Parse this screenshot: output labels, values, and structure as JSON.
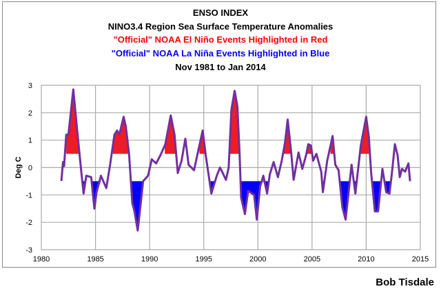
{
  "chart_data": {
    "type": "line",
    "title": [
      "ENSO INDEX",
      "NINO3.4 Region Sea Surface Temperature Anomalies",
      "\"Official\" NOAA El Niño Events Highlighted in Red",
      "\"Official\" NOAA La Niña Events Highlighted in Blue",
      "Nov 1981 to Jan 2014"
    ],
    "title_colors": [
      "#000000",
      "#000000",
      "#ff0000",
      "#0000ff",
      "#000000"
    ],
    "ylabel": "Deg C",
    "xlabel": "",
    "xlim": [
      1980,
      2015
    ],
    "ylim": [
      -3,
      3
    ],
    "xticks": [
      1980,
      1985,
      1990,
      1995,
      2000,
      2005,
      2010,
      2015
    ],
    "yticks": [
      -3,
      -2,
      -1,
      0,
      1,
      2,
      3
    ],
    "grid": true,
    "line_color": "#7030a0",
    "el_nino_color": "#ee1c24",
    "la_nina_color": "#0000ff",
    "threshold": 0.5,
    "points": [
      [
        1981.85,
        -0.49
      ],
      [
        1982.0,
        0.2
      ],
      [
        1982.1,
        0.05
      ],
      [
        1982.3,
        1.2
      ],
      [
        1982.5,
        1.2
      ],
      [
        1982.95,
        2.85
      ],
      [
        1983.3,
        1.4
      ],
      [
        1983.5,
        0.6
      ],
      [
        1983.7,
        -0.2
      ],
      [
        1983.9,
        -0.95
      ],
      [
        1984.15,
        -0.3
      ],
      [
        1984.6,
        -0.35
      ],
      [
        1984.9,
        -1.5
      ],
      [
        1985.1,
        -0.9
      ],
      [
        1985.5,
        -0.3
      ],
      [
        1986.0,
        -0.75
      ],
      [
        1986.35,
        0.1
      ],
      [
        1986.75,
        1.2
      ],
      [
        1987.0,
        1.35
      ],
      [
        1987.2,
        1.2
      ],
      [
        1987.6,
        1.85
      ],
      [
        1987.8,
        1.5
      ],
      [
        1988.1,
        0.5
      ],
      [
        1988.4,
        -1.3
      ],
      [
        1988.6,
        -1.6
      ],
      [
        1988.9,
        -2.3
      ],
      [
        1989.1,
        -1.6
      ],
      [
        1989.4,
        -0.5
      ],
      [
        1989.85,
        -0.3
      ],
      [
        1990.2,
        0.3
      ],
      [
        1990.6,
        0.15
      ],
      [
        1991.0,
        0.45
      ],
      [
        1991.45,
        0.85
      ],
      [
        1991.95,
        1.9
      ],
      [
        1992.3,
        1.2
      ],
      [
        1992.6,
        -0.2
      ],
      [
        1992.95,
        0.25
      ],
      [
        1993.3,
        1.05
      ],
      [
        1993.6,
        0.1
      ],
      [
        1994.1,
        -0.1
      ],
      [
        1994.4,
        0.45
      ],
      [
        1994.9,
        1.35
      ],
      [
        1995.2,
        0.4
      ],
      [
        1995.7,
        -0.95
      ],
      [
        1996.2,
        -0.3
      ],
      [
        1996.5,
        0.0
      ],
      [
        1996.75,
        -0.2
      ],
      [
        1997.05,
        -0.45
      ],
      [
        1997.3,
        0.0
      ],
      [
        1997.55,
        2.1
      ],
      [
        1997.85,
        2.8
      ],
      [
        1998.1,
        2.25
      ],
      [
        1998.3,
        0.6
      ],
      [
        1998.45,
        -1.1
      ],
      [
        1998.8,
        -1.7
      ],
      [
        1999.1,
        -0.85
      ],
      [
        1999.65,
        -1.0
      ],
      [
        1999.9,
        -1.9
      ],
      [
        2000.2,
        -0.7
      ],
      [
        2000.5,
        -0.3
      ],
      [
        2000.85,
        -0.95
      ],
      [
        2001.1,
        -0.25
      ],
      [
        2001.45,
        0.2
      ],
      [
        2001.85,
        -0.35
      ],
      [
        2002.2,
        0.25
      ],
      [
        2002.5,
        0.9
      ],
      [
        2002.75,
        1.75
      ],
      [
        2003.05,
        0.65
      ],
      [
        2003.3,
        -0.45
      ],
      [
        2003.75,
        0.55
      ],
      [
        2004.1,
        -0.05
      ],
      [
        2004.45,
        0.45
      ],
      [
        2004.65,
        0.85
      ],
      [
        2004.9,
        0.8
      ],
      [
        2005.1,
        0.25
      ],
      [
        2005.4,
        0.5
      ],
      [
        2005.85,
        -0.15
      ],
      [
        2006.0,
        -0.9
      ],
      [
        2006.4,
        0.25
      ],
      [
        2006.9,
        1.15
      ],
      [
        2007.15,
        0.1
      ],
      [
        2007.45,
        -0.1
      ],
      [
        2007.8,
        -1.45
      ],
      [
        2008.1,
        -1.9
      ],
      [
        2008.35,
        -1.0
      ],
      [
        2008.65,
        0.1
      ],
      [
        2009.0,
        -0.95
      ],
      [
        2009.5,
        0.8
      ],
      [
        2010.0,
        1.85
      ],
      [
        2010.25,
        1.1
      ],
      [
        2010.45,
        -0.15
      ],
      [
        2010.8,
        -1.6
      ],
      [
        2011.1,
        -1.6
      ],
      [
        2011.5,
        -0.05
      ],
      [
        2011.85,
        -0.9
      ],
      [
        2012.15,
        -0.95
      ],
      [
        2012.35,
        -0.3
      ],
      [
        2012.65,
        0.85
      ],
      [
        2012.9,
        0.45
      ],
      [
        2013.1,
        -0.35
      ],
      [
        2013.3,
        -0.05
      ],
      [
        2013.6,
        -0.15
      ],
      [
        2013.9,
        0.15
      ],
      [
        2014.05,
        -0.5
      ]
    ],
    "events": [
      {
        "type": "el_nino",
        "start": 1982.3,
        "end": 1983.5
      },
      {
        "type": "la_nina",
        "start": 1983.7,
        "end": 1984.1
      },
      {
        "type": "la_nina",
        "start": 1984.7,
        "end": 1985.5
      },
      {
        "type": "el_nino",
        "start": 1986.6,
        "end": 1988.1
      },
      {
        "type": "la_nina",
        "start": 1988.3,
        "end": 1989.4
      },
      {
        "type": "el_nino",
        "start": 1991.4,
        "end": 1992.4
      },
      {
        "type": "el_nino",
        "start": 1994.6,
        "end": 1995.2
      },
      {
        "type": "la_nina",
        "start": 1995.5,
        "end": 1996.1
      },
      {
        "type": "el_nino",
        "start": 1997.4,
        "end": 1998.3
      },
      {
        "type": "la_nina",
        "start": 1998.4,
        "end": 2000.9
      },
      {
        "type": "el_nino",
        "start": 2002.4,
        "end": 2003.1
      },
      {
        "type": "el_nino",
        "start": 2004.5,
        "end": 2005.1
      },
      {
        "type": "la_nina",
        "start": 2005.9,
        "end": 2006.1
      },
      {
        "type": "el_nino",
        "start": 2006.7,
        "end": 2007.0
      },
      {
        "type": "la_nina",
        "start": 2007.6,
        "end": 2008.4
      },
      {
        "type": "la_nina",
        "start": 2008.8,
        "end": 2009.1
      },
      {
        "type": "el_nino",
        "start": 2009.5,
        "end": 2010.25
      },
      {
        "type": "la_nina",
        "start": 2010.5,
        "end": 2011.3
      },
      {
        "type": "la_nina",
        "start": 2011.6,
        "end": 2012.2
      }
    ]
  },
  "footer": "Bob Tisdale"
}
